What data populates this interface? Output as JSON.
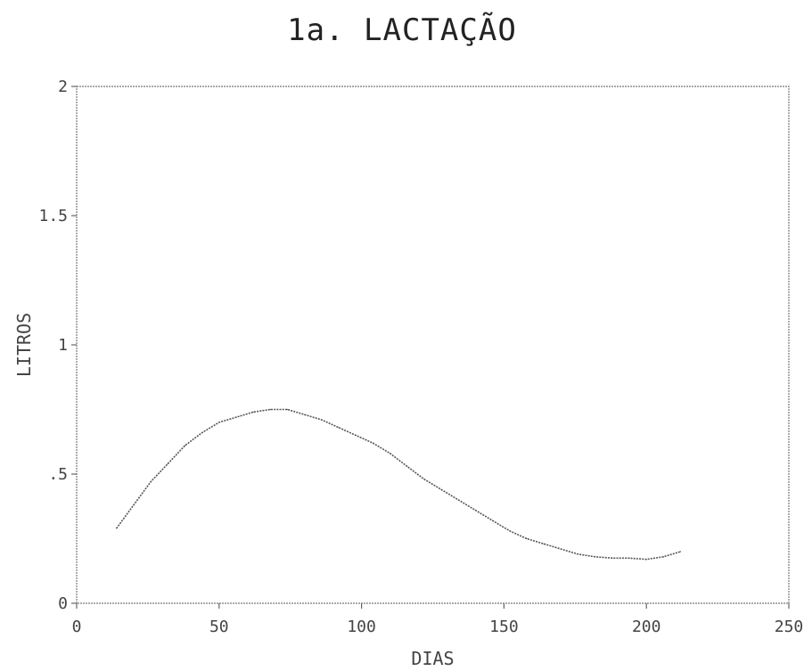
{
  "chart_data": {
    "type": "line",
    "title": "1a. LACTAÇÃO",
    "xlabel": "DIAS",
    "ylabel": "LITROS",
    "xlim": [
      0,
      250
    ],
    "ylim": [
      0,
      2
    ],
    "x_ticks": [
      "0",
      "50",
      "100",
      "150",
      "200",
      "250"
    ],
    "y_ticks": [
      "0",
      ".5",
      "1",
      "1.5",
      "2"
    ],
    "grid": false,
    "line_color": "#555555",
    "series": [
      {
        "x": [
          14,
          20,
          26,
          32,
          38,
          44,
          50,
          56,
          62,
          68,
          74,
          80,
          86,
          92,
          98,
          104,
          110,
          116,
          122,
          128,
          134,
          140,
          146,
          152,
          158,
          164,
          170,
          176,
          182,
          188,
          194,
          200,
          206,
          212
        ],
        "values": [
          0.29,
          0.38,
          0.47,
          0.54,
          0.61,
          0.66,
          0.7,
          0.72,
          0.74,
          0.75,
          0.75,
          0.73,
          0.71,
          0.68,
          0.65,
          0.62,
          0.58,
          0.53,
          0.48,
          0.44,
          0.4,
          0.36,
          0.32,
          0.28,
          0.25,
          0.23,
          0.21,
          0.19,
          0.18,
          0.175,
          0.175,
          0.17,
          0.18,
          0.2
        ]
      }
    ]
  }
}
